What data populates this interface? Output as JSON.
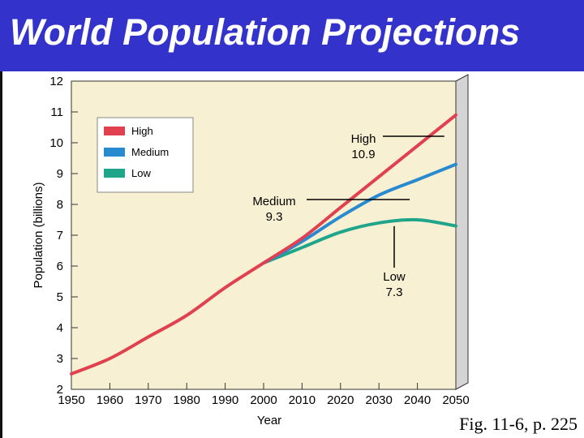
{
  "slide": {
    "title": "World Population Projections",
    "caption": "Fig. 11-6, p. 225"
  },
  "colors": {
    "title_bg": "#3333cc",
    "plot_bg": "#f7f0d2",
    "high": "#e0404f",
    "medium": "#2a8ad0",
    "low": "#1fa58a"
  },
  "chart_data": {
    "type": "line",
    "title": "",
    "xlabel": "Year",
    "ylabel": "Population (billions)",
    "xlim": [
      1950,
      2050
    ],
    "ylim": [
      2,
      12
    ],
    "xticks": [
      "1950",
      "1960",
      "1970",
      "1980",
      "1990",
      "2000",
      "2010",
      "2020",
      "2030",
      "2040",
      "2050"
    ],
    "yticks": [
      "2",
      "3",
      "4",
      "5",
      "6",
      "7",
      "8",
      "9",
      "10",
      "11",
      "12"
    ],
    "grid": false,
    "legend_position": "top-left",
    "series": [
      {
        "name": "High",
        "color_key": "high",
        "x": [
          1950,
          1960,
          1970,
          1980,
          1990,
          2000,
          2010,
          2020,
          2030,
          2040,
          2050
        ],
        "y": [
          2.5,
          3.0,
          3.7,
          4.4,
          5.3,
          6.1,
          6.9,
          7.9,
          8.9,
          9.9,
          10.9
        ]
      },
      {
        "name": "Medium",
        "color_key": "medium",
        "x": [
          2000,
          2010,
          2020,
          2030,
          2040,
          2050
        ],
        "y": [
          6.1,
          6.8,
          7.6,
          8.3,
          8.8,
          9.3
        ]
      },
      {
        "name": "Low",
        "color_key": "low",
        "x": [
          2000,
          2010,
          2020,
          2030,
          2040,
          2050
        ],
        "y": [
          6.1,
          6.6,
          7.1,
          7.4,
          7.5,
          7.3
        ]
      }
    ],
    "annotations": [
      {
        "series": "High",
        "name": "High",
        "value": "10.9",
        "anchor": [
          2050,
          10.9
        ]
      },
      {
        "series": "Medium",
        "name": "Medium",
        "value": "9.3",
        "anchor": [
          2035,
          8.5
        ]
      },
      {
        "series": "Low",
        "name": "Low",
        "value": "7.3",
        "anchor": [
          2036,
          7.4
        ]
      }
    ]
  }
}
